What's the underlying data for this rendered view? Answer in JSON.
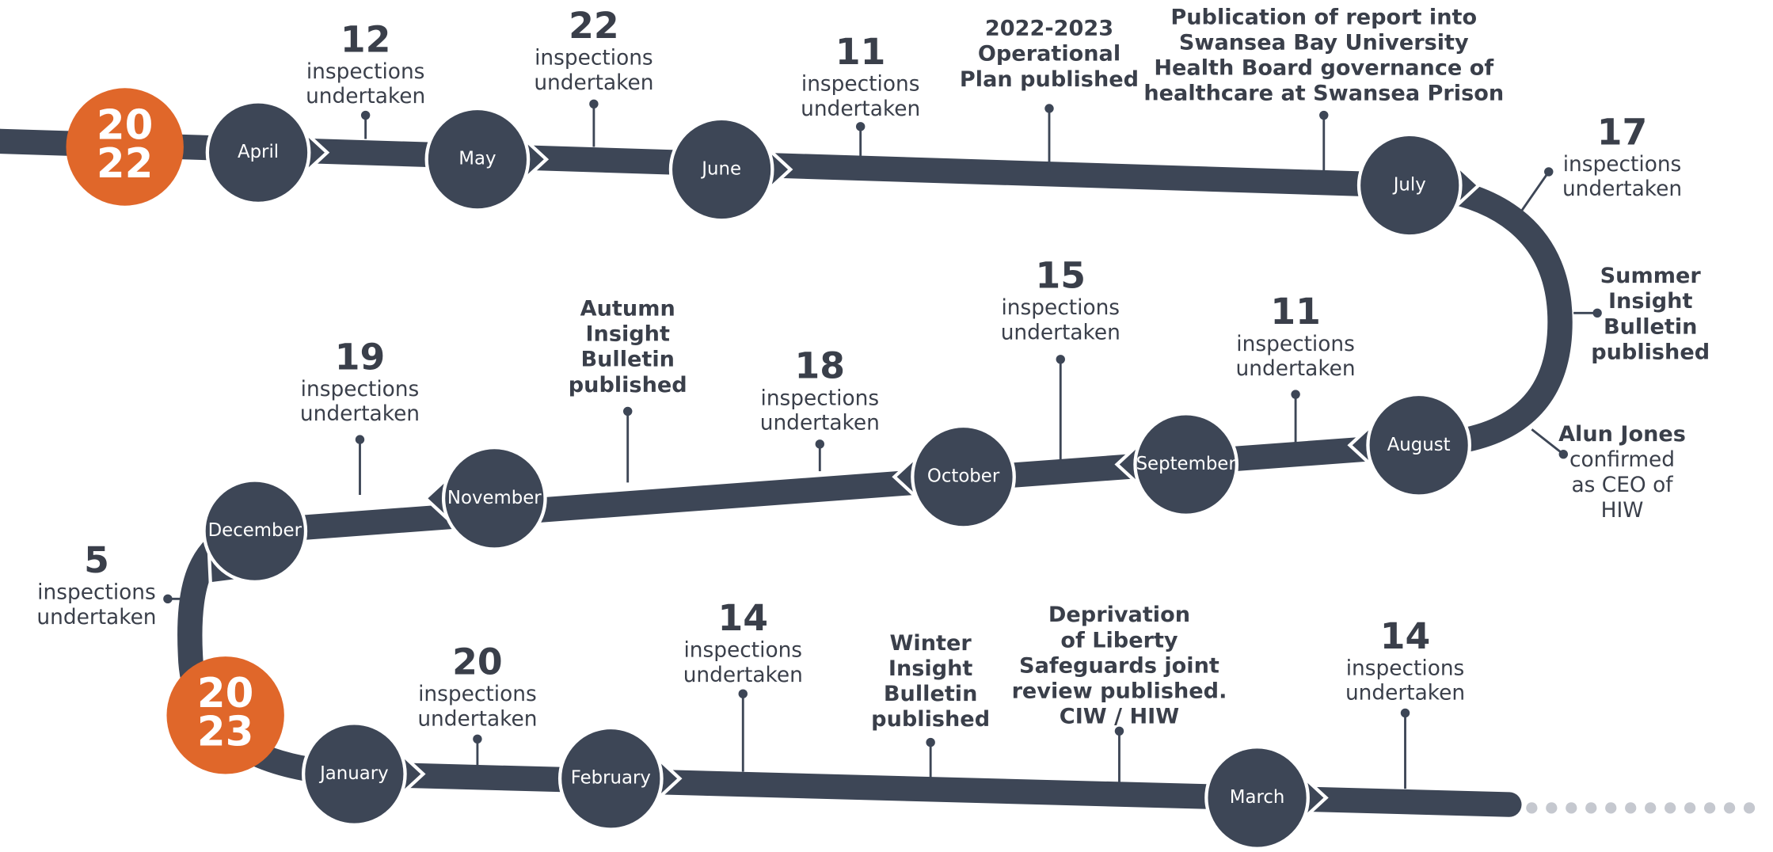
{
  "years": [
    [
      "20",
      "22"
    ],
    [
      "20",
      "23"
    ]
  ],
  "months": [
    "April",
    "May",
    "June",
    "July",
    "August",
    "September",
    "October",
    "November",
    "December",
    "January",
    "February",
    "March"
  ],
  "events": [
    {
      "count": "12",
      "lines": [
        "inspections",
        "undertaken"
      ]
    },
    {
      "count": "22",
      "lines": [
        "inspections",
        "undertaken"
      ]
    },
    {
      "count": "11",
      "lines": [
        "inspections",
        "undertaken"
      ]
    },
    {
      "lines": [
        "2022-2023",
        "Operational",
        "Plan published"
      ]
    },
    {
      "lines": [
        "Publication of report into",
        "Swansea Bay University",
        "Health Board governance of",
        "healthcare at Swansea Prison"
      ]
    },
    {
      "count": "17",
      "lines": [
        "inspections",
        "undertaken"
      ]
    },
    {
      "lines": [
        "Summer",
        "Insight",
        "Bulletin",
        "published"
      ]
    },
    {
      "lines": [
        "Alun Jones",
        "confirmed",
        "as CEO of",
        "HIW"
      ],
      "mixed": true
    },
    {
      "count": "11",
      "lines": [
        "inspections",
        "undertaken"
      ]
    },
    {
      "count": "15",
      "lines": [
        "inspections",
        "undertaken"
      ]
    },
    {
      "count": "18",
      "lines": [
        "inspections",
        "undertaken"
      ]
    },
    {
      "lines": [
        "Autumn",
        "Insight",
        "Bulletin",
        "published"
      ]
    },
    {
      "count": "19",
      "lines": [
        "inspections",
        "undertaken"
      ]
    },
    {
      "count": "5",
      "lines": [
        "inspections",
        "undertaken"
      ]
    },
    {
      "count": "20",
      "lines": [
        "inspections",
        "undertaken"
      ]
    },
    {
      "count": "14",
      "lines": [
        "inspections",
        "undertaken"
      ]
    },
    {
      "lines": [
        "Winter",
        "Insight",
        "Bulletin",
        "published"
      ]
    },
    {
      "lines": [
        "Deprivation",
        "of Liberty",
        "Safeguards joint",
        "review published.",
        "CIW / HIW"
      ]
    },
    {
      "count": "14",
      "lines": [
        "inspections",
        "undertaken"
      ]
    }
  ]
}
